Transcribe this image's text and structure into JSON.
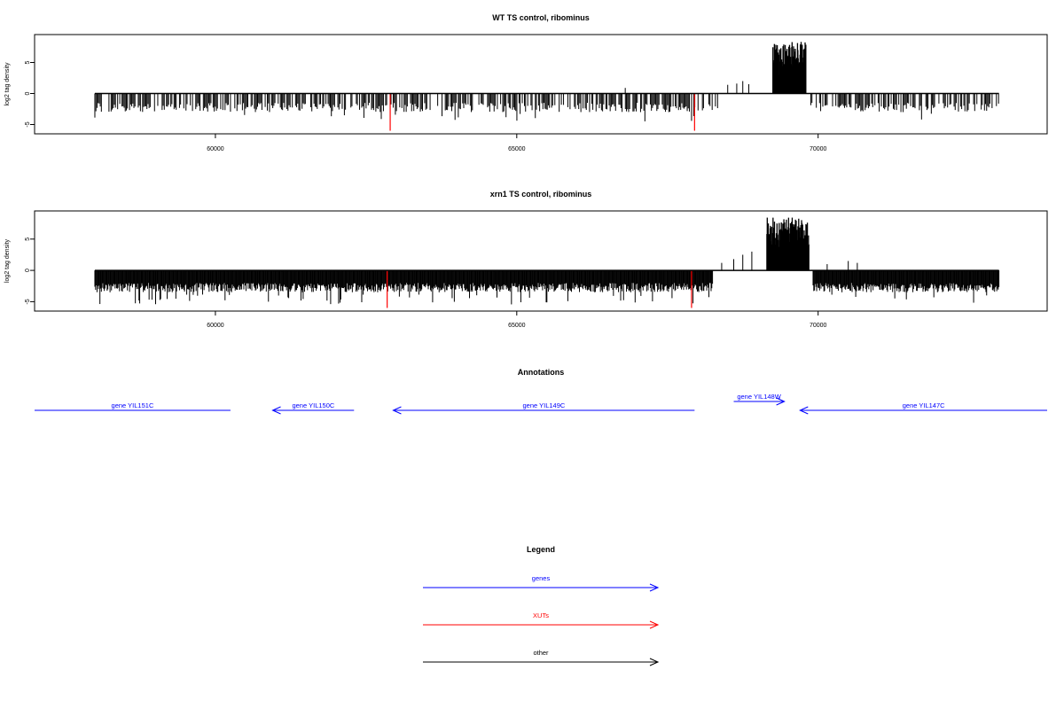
{
  "chart_data": [
    {
      "type": "bar",
      "title": "WT TS control, ribominus",
      "ylabel": "log2 tag density",
      "xlim": [
        57000,
        73800
      ],
      "ylim": [
        -6.5,
        9.5
      ],
      "x_ticks": [
        60000,
        65000,
        70000
      ],
      "y_ticks": [
        -5,
        0,
        5
      ],
      "baseline_extent": [
        58000,
        73000
      ],
      "grid": false,
      "series": [
        {
          "color": "#000000",
          "background_signal": {
            "x_range": [
              58000,
              73000
            ],
            "typical_low": -1.5,
            "typical_high": -3.0,
            "max_depth": -4.5
          },
          "peak_region": {
            "x_range": [
              69250,
              69800
            ],
            "peak_max": 8.5
          },
          "positive_spikes": [
            [
              68500,
              1.4
            ],
            [
              68650,
              1.6
            ],
            [
              68750,
              2.0
            ],
            [
              68850,
              1.5
            ],
            [
              66800,
              0.9
            ]
          ]
        },
        {
          "color": "#ff0000",
          "spikes": [
            [
              62900,
              -6.0
            ],
            [
              67950,
              -6.0
            ]
          ]
        }
      ]
    },
    {
      "type": "bar",
      "title": "xrn1 TS control, ribominus",
      "ylabel": "log2 tag density",
      "xlim": [
        57000,
        73800
      ],
      "ylim": [
        -6.5,
        9.5
      ],
      "x_ticks": [
        60000,
        65000,
        70000
      ],
      "y_ticks": [
        -5,
        0,
        5
      ],
      "baseline_extent": [
        58000,
        73000
      ],
      "grid": false,
      "series": [
        {
          "color": "#000000",
          "background_signal": {
            "x_range": [
              58000,
              73000
            ],
            "typical_low": -2.0,
            "typical_high": -3.5,
            "max_depth": -5.5
          },
          "peak_region": {
            "x_range": [
              69150,
              69850
            ],
            "peak_max": 8.5
          },
          "positive_spikes": [
            [
              68400,
              1.2
            ],
            [
              68600,
              1.8
            ],
            [
              68750,
              2.5
            ],
            [
              68900,
              3.0
            ],
            [
              70150,
              1.0
            ],
            [
              70500,
              1.5
            ],
            [
              70650,
              1.2
            ]
          ]
        },
        {
          "color": "#ff0000",
          "spikes": [
            [
              62850,
              -6.0
            ],
            [
              67900,
              -6.0
            ]
          ]
        }
      ]
    }
  ],
  "annotations": {
    "title": "Annotations",
    "xlim": [
      57000,
      73800
    ],
    "genes": [
      {
        "label": "gene YIL151C",
        "start": 57000,
        "end": 60250,
        "strand": "-",
        "show_arrow": false,
        "row": 0
      },
      {
        "label": "gene YIL150C",
        "start": 60950,
        "end": 62300,
        "strand": "-",
        "show_arrow": true,
        "row": 0
      },
      {
        "label": "gene YIL149C",
        "start": 62950,
        "end": 67950,
        "strand": "-",
        "show_arrow": true,
        "row": 0
      },
      {
        "label": "gene YIL148W",
        "start": 68600,
        "end": 69440,
        "strand": "+",
        "show_arrow": true,
        "row": 1
      },
      {
        "label": "gene YIL147C",
        "start": 69700,
        "end": 73800,
        "strand": "-",
        "show_arrow": true,
        "row": 0
      }
    ],
    "color": "#0000ff"
  },
  "legend": {
    "title": "Legend",
    "items": [
      {
        "label": "genes",
        "color": "#0000ff"
      },
      {
        "label": "XUTs",
        "color": "#ff0000"
      },
      {
        "label": "other",
        "color": "#000000"
      }
    ]
  }
}
